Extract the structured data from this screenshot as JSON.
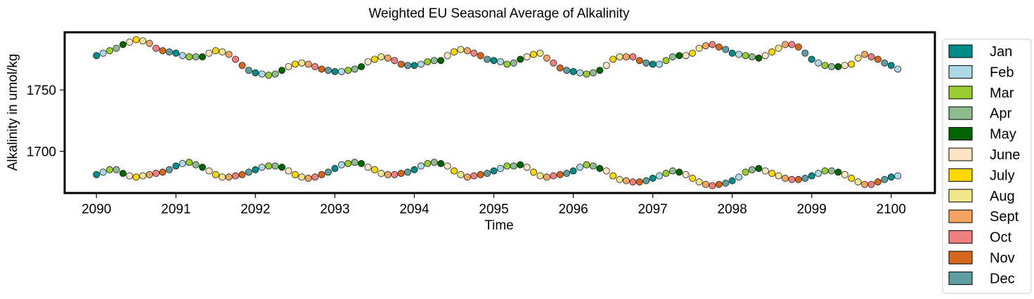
{
  "chart_data": {
    "type": "scatter",
    "title": "Weighted EU Seasonal Average of Alkalinity",
    "xlabel": "Time",
    "ylabel": "Alkalinity in umol/kg",
    "xlim": [
      2089.6,
      2100.55
    ],
    "ylim": [
      1666,
      1797
    ],
    "x_ticks": [
      2090,
      2091,
      2092,
      2093,
      2094,
      2095,
      2096,
      2097,
      2098,
      2099,
      2100
    ],
    "y_ticks": [
      1700,
      1750
    ],
    "grid": false,
    "legend_placement": "outside-right",
    "months": [
      "Jan",
      "Feb",
      "Mar",
      "Apr",
      "May",
      "June",
      "July",
      "Aug",
      "Sept",
      "Oct",
      "Nov",
      "Dec"
    ],
    "month_colors": [
      "#008b8b",
      "#add8e6",
      "#9acd32",
      "#8fbc8f",
      "#006400",
      "#ffe4c4",
      "#ffd700",
      "#f0e68c",
      "#f4a460",
      "#f08080",
      "#d2691e",
      "#5f9ea0"
    ],
    "start_year": 2090,
    "series": [
      {
        "values": [
          1778,
          1780,
          1782,
          1784,
          1787,
          1789,
          1791,
          1790,
          1788,
          1784,
          1782,
          1781,
          1780,
          1778,
          1777,
          1777,
          1777,
          1780,
          1782,
          1781,
          1779,
          1775,
          1770,
          1766,
          1764,
          1763,
          1762,
          1763,
          1766,
          1769,
          1771,
          1772,
          1771,
          1769,
          1767,
          1766,
          1765,
          1765,
          1766,
          1767,
          1769,
          1773,
          1775,
          1777,
          1776,
          1774,
          1771,
          1770,
          1770,
          1771,
          1773,
          1774,
          1774,
          1778,
          1781,
          1783,
          1782,
          1780,
          1778,
          1775,
          1774,
          1773,
          1771,
          1772,
          1775,
          1777,
          1779,
          1780,
          1776,
          1772,
          1768,
          1766,
          1765,
          1764,
          1763,
          1764,
          1766,
          1770,
          1775,
          1777,
          1777,
          1777,
          1774,
          1772,
          1771,
          1771,
          1774,
          1777,
          1778,
          1778,
          1780,
          1784,
          1786,
          1787,
          1785,
          1783,
          1780,
          1779,
          1778,
          1777,
          1776,
          1778,
          1781,
          1784,
          1787,
          1787,
          1785,
          1780,
          1775,
          1772,
          1770,
          1769,
          1769,
          1770,
          1771,
          1776,
          1779,
          1777,
          1775,
          1772,
          1770,
          1767
        ]
      },
      {
        "values": [
          1681,
          1683,
          1685,
          1685,
          1682,
          1680,
          1679,
          1680,
          1681,
          1682,
          1683,
          1685,
          1688,
          1690,
          1691,
          1689,
          1687,
          1684,
          1681,
          1679,
          1679,
          1680,
          1681,
          1683,
          1685,
          1687,
          1688,
          1688,
          1687,
          1684,
          1681,
          1679,
          1678,
          1679,
          1681,
          1683,
          1686,
          1689,
          1690,
          1691,
          1690,
          1687,
          1685,
          1682,
          1681,
          1681,
          1682,
          1683,
          1685,
          1688,
          1690,
          1691,
          1690,
          1688,
          1684,
          1681,
          1679,
          1680,
          1681,
          1682,
          1684,
          1686,
          1688,
          1688,
          1689,
          1687,
          1683,
          1680,
          1679,
          1680,
          1681,
          1682,
          1684,
          1687,
          1689,
          1688,
          1686,
          1684,
          1680,
          1677,
          1676,
          1675,
          1675,
          1676,
          1678,
          1680,
          1682,
          1684,
          1683,
          1681,
          1678,
          1675,
          1673,
          1672,
          1673,
          1674,
          1676,
          1679,
          1683,
          1685,
          1686,
          1684,
          1682,
          1680,
          1678,
          1677,
          1677,
          1678,
          1680,
          1682,
          1684,
          1684,
          1683,
          1681,
          1678,
          1675,
          1673,
          1673,
          1675,
          1677,
          1679,
          1680
        ]
      }
    ]
  }
}
